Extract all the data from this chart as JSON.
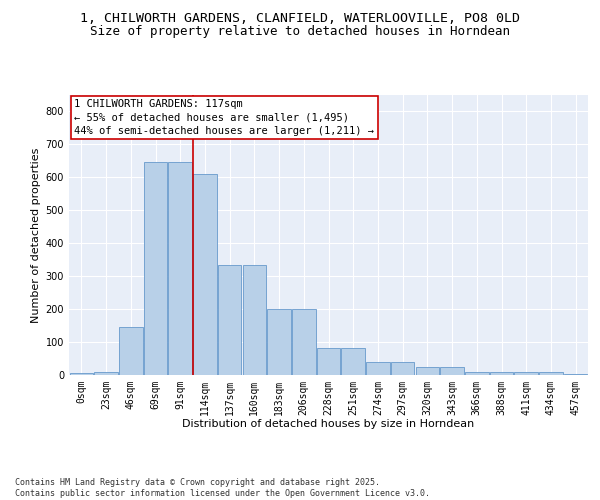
{
  "title_line1": "1, CHILWORTH GARDENS, CLANFIELD, WATERLOOVILLE, PO8 0LD",
  "title_line2": "Size of property relative to detached houses in Horndean",
  "xlabel": "Distribution of detached houses by size in Horndean",
  "ylabel": "Number of detached properties",
  "bin_labels": [
    "0sqm",
    "23sqm",
    "46sqm",
    "69sqm",
    "91sqm",
    "114sqm",
    "137sqm",
    "160sqm",
    "183sqm",
    "206sqm",
    "228sqm",
    "251sqm",
    "274sqm",
    "297sqm",
    "320sqm",
    "343sqm",
    "366sqm",
    "388sqm",
    "411sqm",
    "434sqm",
    "457sqm"
  ],
  "bar_values": [
    5,
    8,
    145,
    648,
    648,
    610,
    335,
    335,
    200,
    200,
    83,
    83,
    40,
    40,
    25,
    25,
    10,
    10,
    10,
    9,
    4
  ],
  "bar_color": "#b8d0e8",
  "bar_edge_color": "#6699cc",
  "bg_color": "#e8eef8",
  "grid_color": "#ffffff",
  "vline_color": "#cc0000",
  "vline_pos": 4.5,
  "annotation_text": "1 CHILWORTH GARDENS: 117sqm\n← 55% of detached houses are smaller (1,495)\n44% of semi-detached houses are larger (1,211) →",
  "annotation_box_color": "#cc0000",
  "ylim": [
    0,
    850
  ],
  "yticks": [
    0,
    100,
    200,
    300,
    400,
    500,
    600,
    700,
    800
  ],
  "footer_text": "Contains HM Land Registry data © Crown copyright and database right 2025.\nContains public sector information licensed under the Open Government Licence v3.0.",
  "title_fontsize": 9.5,
  "subtitle_fontsize": 9,
  "axis_label_fontsize": 8,
  "tick_fontsize": 7,
  "annotation_fontsize": 7.5
}
